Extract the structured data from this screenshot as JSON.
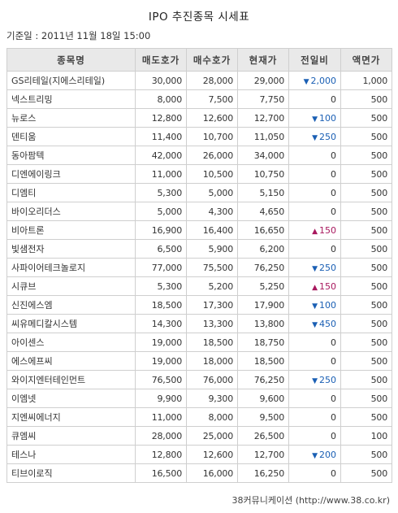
{
  "title": "IPO 추진종목 시세표",
  "timestamp": "기준일 : 2011년 11월 18일 15:00",
  "source": "38커뮤니케이션 (http://www.38.co.kr)",
  "colors": {
    "down": "#1a5fb4",
    "up": "#a8185e",
    "header_bg": "#e9e9e9",
    "border": "#cfcfcf"
  },
  "icons": {
    "down": "down-triangle-icon",
    "up": "up-triangle-icon"
  },
  "headers": [
    "종목명",
    "매도호가",
    "매수호가",
    "현재가",
    "전일비",
    "액면가"
  ],
  "rows": [
    {
      "name": "GS리테일(지에스리테일)",
      "ask": "30,000",
      "bid": "28,000",
      "price": "29,000",
      "dir": "down",
      "change": "2,000",
      "par": "1,000"
    },
    {
      "name": "넥스트리밍",
      "ask": "8,000",
      "bid": "7,500",
      "price": "7,750",
      "dir": "none",
      "change": "0",
      "par": "500"
    },
    {
      "name": "뉴로스",
      "ask": "12,800",
      "bid": "12,600",
      "price": "12,700",
      "dir": "down",
      "change": "100",
      "par": "500"
    },
    {
      "name": "덴티움",
      "ask": "11,400",
      "bid": "10,700",
      "price": "11,050",
      "dir": "down",
      "change": "250",
      "par": "500"
    },
    {
      "name": "동아팜텍",
      "ask": "42,000",
      "bid": "26,000",
      "price": "34,000",
      "dir": "none",
      "change": "0",
      "par": "500"
    },
    {
      "name": "디엔에이링크",
      "ask": "11,000",
      "bid": "10,500",
      "price": "10,750",
      "dir": "none",
      "change": "0",
      "par": "500"
    },
    {
      "name": "디엠티",
      "ask": "5,300",
      "bid": "5,000",
      "price": "5,150",
      "dir": "none",
      "change": "0",
      "par": "500"
    },
    {
      "name": "바이오리더스",
      "ask": "5,000",
      "bid": "4,300",
      "price": "4,650",
      "dir": "none",
      "change": "0",
      "par": "500"
    },
    {
      "name": "비아트론",
      "ask": "16,900",
      "bid": "16,400",
      "price": "16,650",
      "dir": "up",
      "change": "150",
      "par": "500"
    },
    {
      "name": "빛샘전자",
      "ask": "6,500",
      "bid": "5,900",
      "price": "6,200",
      "dir": "none",
      "change": "0",
      "par": "500"
    },
    {
      "name": "사파이어테크놀로지",
      "ask": "77,000",
      "bid": "75,500",
      "price": "76,250",
      "dir": "down",
      "change": "250",
      "par": "500"
    },
    {
      "name": "시큐브",
      "ask": "5,300",
      "bid": "5,200",
      "price": "5,250",
      "dir": "up",
      "change": "150",
      "par": "500"
    },
    {
      "name": "신진에스엠",
      "ask": "18,500",
      "bid": "17,300",
      "price": "17,900",
      "dir": "down",
      "change": "100",
      "par": "500"
    },
    {
      "name": "씨유메디칼시스템",
      "ask": "14,300",
      "bid": "13,300",
      "price": "13,800",
      "dir": "down",
      "change": "450",
      "par": "500"
    },
    {
      "name": "아이센스",
      "ask": "19,000",
      "bid": "18,500",
      "price": "18,750",
      "dir": "none",
      "change": "0",
      "par": "500"
    },
    {
      "name": "에스에프씨",
      "ask": "19,000",
      "bid": "18,000",
      "price": "18,500",
      "dir": "none",
      "change": "0",
      "par": "500"
    },
    {
      "name": "와이지엔터테인먼트",
      "ask": "76,500",
      "bid": "76,000",
      "price": "76,250",
      "dir": "down",
      "change": "250",
      "par": "500"
    },
    {
      "name": "이엠넷",
      "ask": "9,900",
      "bid": "9,300",
      "price": "9,600",
      "dir": "none",
      "change": "0",
      "par": "500"
    },
    {
      "name": "지엔씨에너지",
      "ask": "11,000",
      "bid": "8,000",
      "price": "9,500",
      "dir": "none",
      "change": "0",
      "par": "500"
    },
    {
      "name": "큐엠씨",
      "ask": "28,000",
      "bid": "25,000",
      "price": "26,500",
      "dir": "none",
      "change": "0",
      "par": "100"
    },
    {
      "name": "테스나",
      "ask": "12,800",
      "bid": "12,600",
      "price": "12,700",
      "dir": "down",
      "change": "200",
      "par": "500"
    },
    {
      "name": "티브이로직",
      "ask": "16,500",
      "bid": "16,000",
      "price": "16,250",
      "dir": "none",
      "change": "0",
      "par": "500"
    }
  ]
}
